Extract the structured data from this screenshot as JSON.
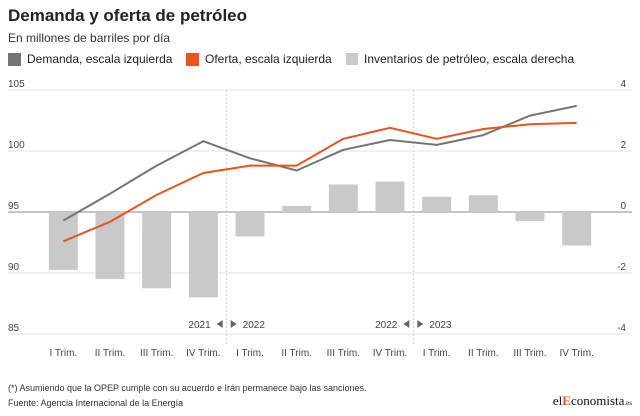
{
  "header": {
    "title": "Demanda y oferta de petróleo",
    "subtitle": "En millones de barriles por día"
  },
  "legend": [
    {
      "label": "Demanda, escala izquierda",
      "color": "#757575",
      "kind": "line-swatch"
    },
    {
      "label": "Oferta, escala izquierda",
      "color": "#e8541b",
      "kind": "line-swatch"
    },
    {
      "label": "Inventarios de petróleo, escala derecha",
      "color": "#c9c9c9",
      "kind": "bar-swatch"
    }
  ],
  "footer": {
    "note": "(*) Asumiendo que la OPEP cumple con su acuerdo e Irán permanece bajo las sanciones.",
    "source": "Fuente: Agencia Internacional de la Energía",
    "brand_prefix": "el",
    "brand_accent": "E",
    "brand_rest": "conomista",
    "brand_tld": ".es"
  },
  "chart_data": {
    "type": "line",
    "categories": [
      "I Trim.",
      "II Trim.",
      "III Trim.",
      "IV Trim.",
      "I Trim.",
      "II Trim.",
      "III Trim.",
      "IV Trim.",
      "I Trim.",
      "II Trim.",
      "III Trim.",
      "IV Trim."
    ],
    "year_markers": [
      {
        "left_label": "2021",
        "right_label": "2022",
        "after_index": 3
      },
      {
        "left_label": "2022",
        "right_label": "2023",
        "after_index": 7
      }
    ],
    "left_axis": {
      "ylim": [
        85,
        105
      ],
      "ticks": [
        85,
        90,
        95,
        100,
        105
      ]
    },
    "right_axis": {
      "ylim": [
        -4,
        4
      ],
      "ticks": [
        -4,
        -2,
        0,
        2,
        4
      ]
    },
    "series": [
      {
        "name": "Demanda, escala izquierda",
        "type": "line",
        "axis": "left",
        "color": "#757575",
        "values": [
          94.3,
          96.5,
          98.8,
          100.8,
          99.4,
          98.4,
          100.1,
          100.9,
          100.5,
          101.3,
          102.9,
          103.7
        ]
      },
      {
        "name": "Oferta, escala izquierda",
        "type": "line",
        "axis": "left",
        "color": "#e8541b",
        "values": [
          92.6,
          94.2,
          96.4,
          98.2,
          98.8,
          98.8,
          101.0,
          101.9,
          101.0,
          101.8,
          102.2,
          102.3
        ]
      },
      {
        "name": "Inventarios de petróleo, escala derecha",
        "type": "bar",
        "axis": "right",
        "color": "#c9c9c9",
        "values": [
          -1.9,
          -2.2,
          -2.5,
          -2.8,
          -0.8,
          0.2,
          0.9,
          1.0,
          0.5,
          0.55,
          -0.3,
          -1.1
        ]
      }
    ],
    "grid": "horizontal"
  }
}
